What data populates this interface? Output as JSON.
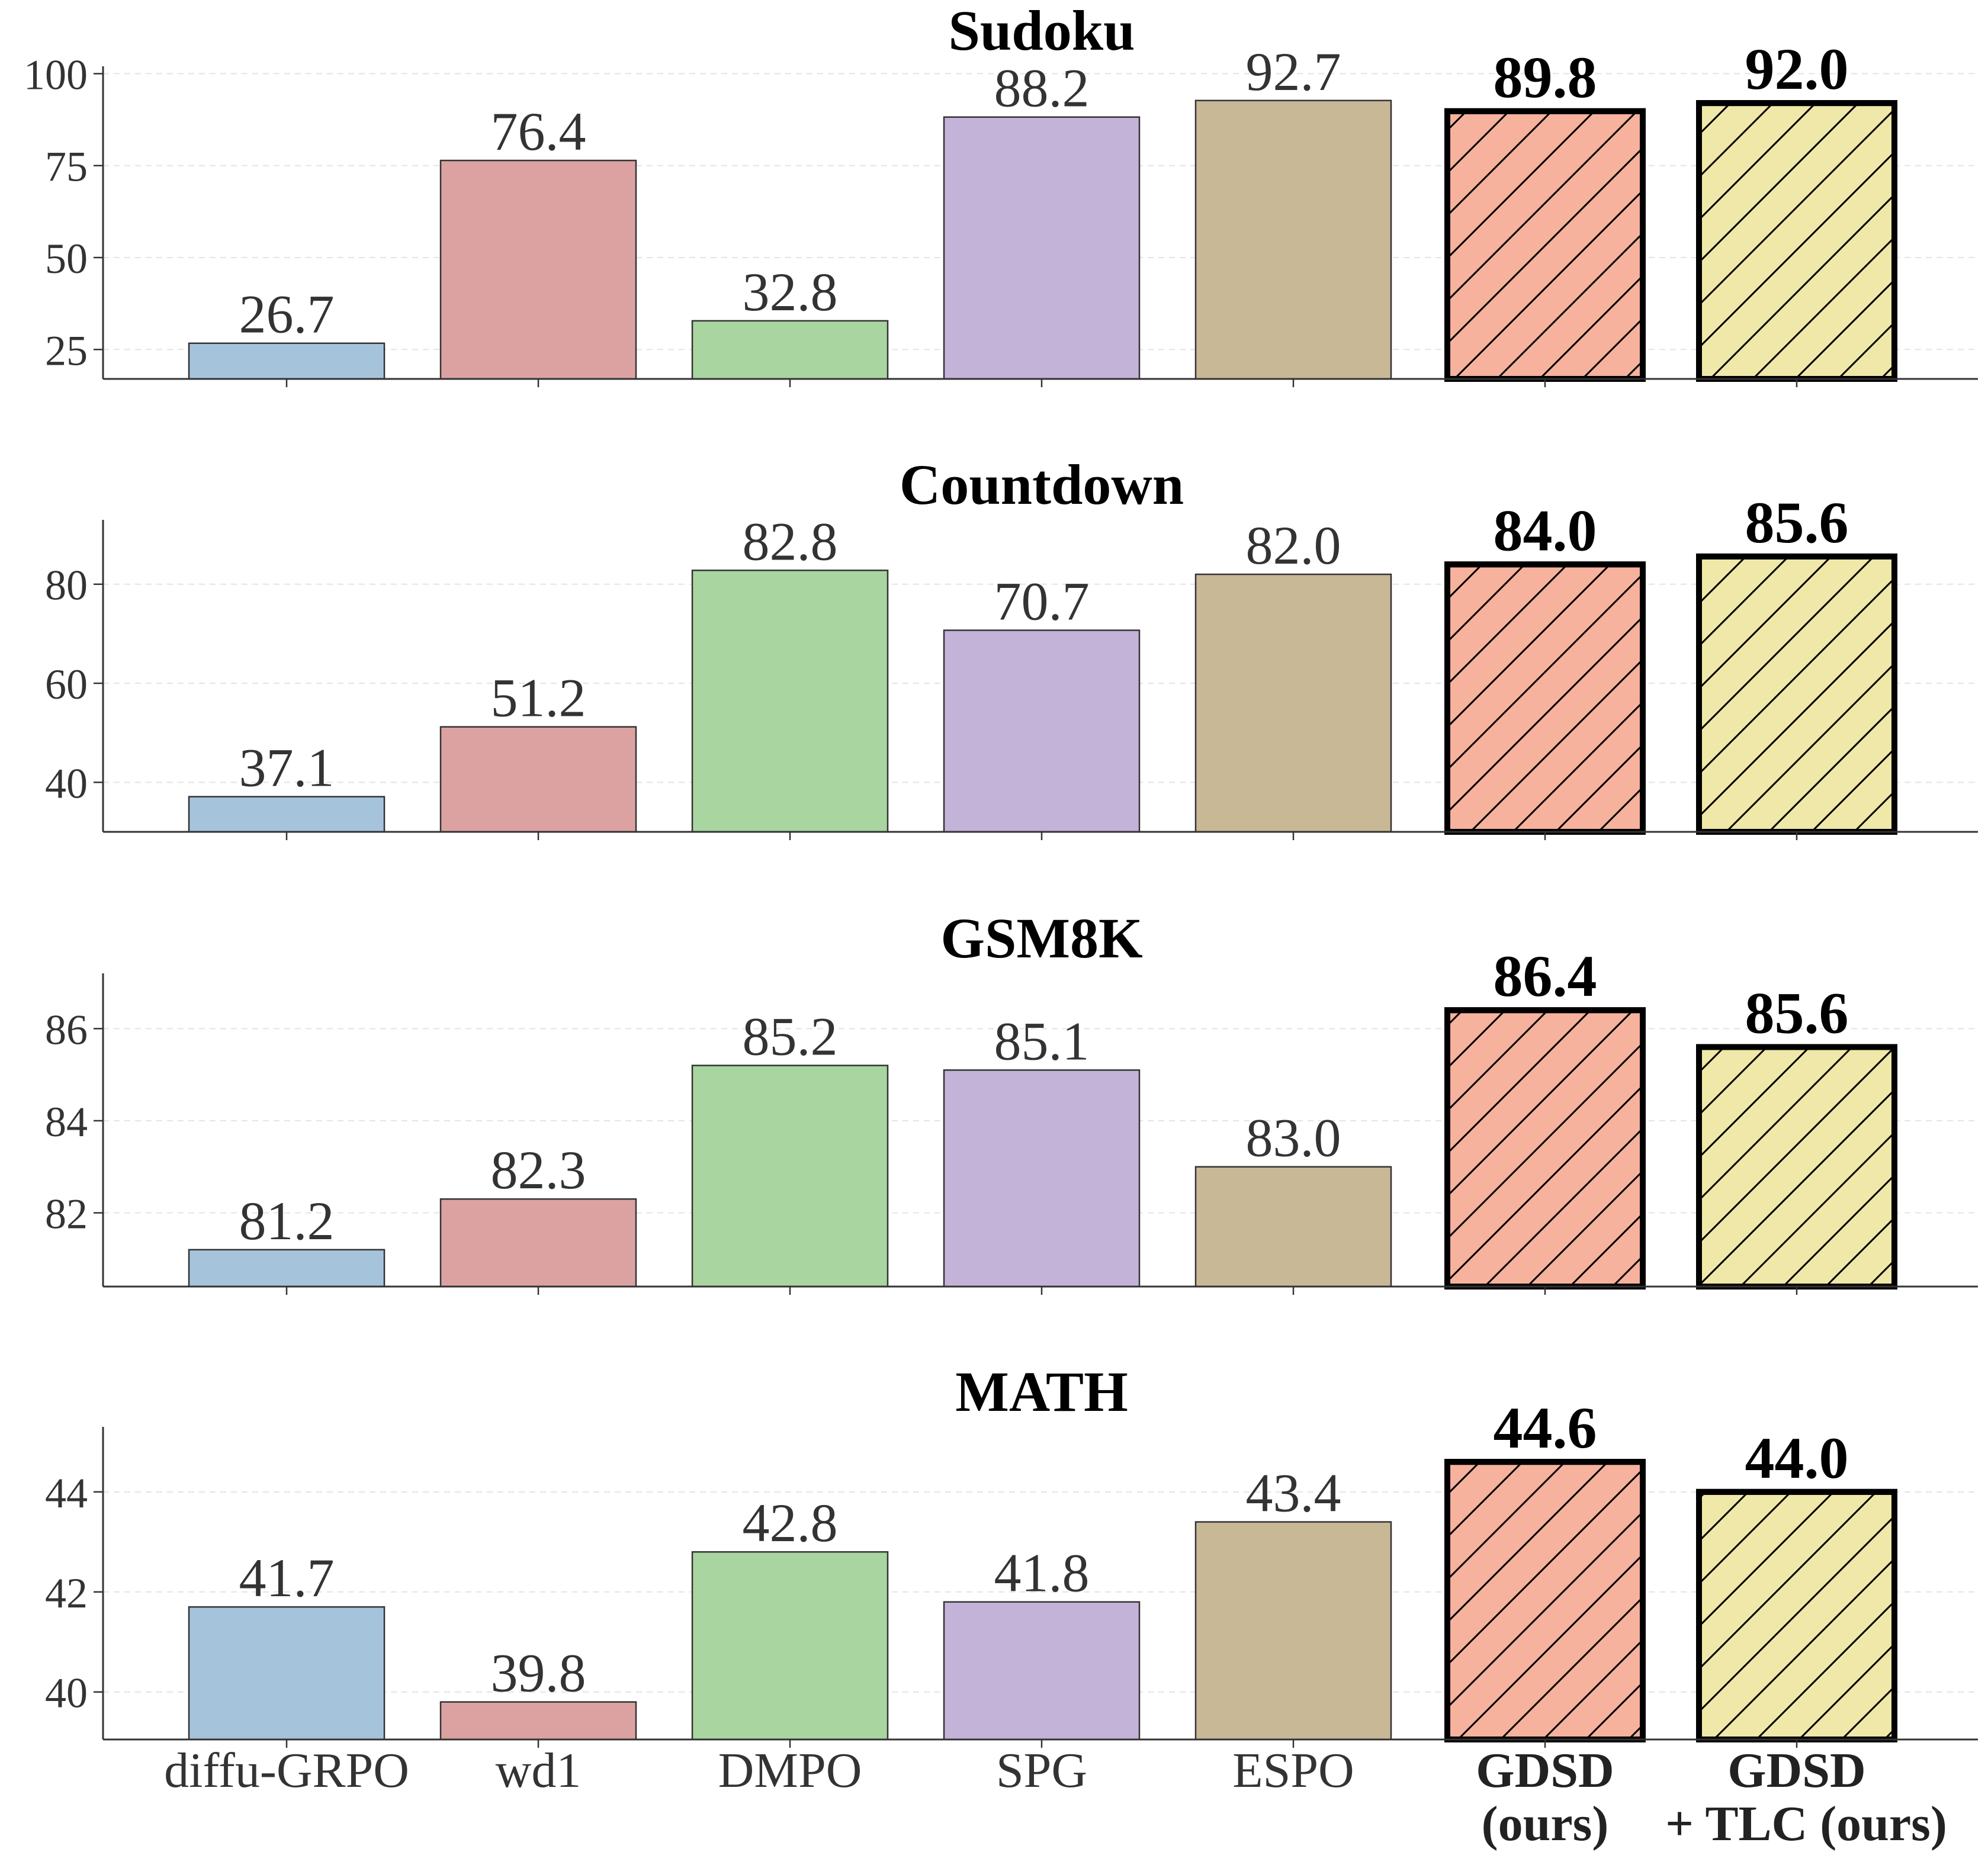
{
  "chart_data": {
    "type": "bar",
    "categories": [
      [
        "diffu-GRPO"
      ],
      [
        "wd1"
      ],
      [
        "DMPO"
      ],
      [
        "SPG"
      ],
      [
        "ESPO"
      ],
      [
        "GDSD",
        "(ours)"
      ],
      [
        "GDSD",
        "+ TLC (ours)"
      ]
    ],
    "highlighted_categories": [
      5,
      6
    ],
    "colors": [
      "#a6c3dc",
      "#dca2a2",
      "#a8d5a0",
      "#c3b3d8",
      "#c8b896",
      "#f6b29d",
      "#efe8a8"
    ],
    "hatched_categories": [
      5,
      6
    ],
    "grid": "horizontal dashed",
    "panels": [
      {
        "title": "Sudoku",
        "values": [
          26.7,
          76.4,
          32.8,
          88.2,
          92.7,
          89.8,
          92.0
        ],
        "value_labels": [
          "26.7",
          "76.4",
          "32.8",
          "88.2",
          "92.7",
          "89.8",
          "92.0"
        ],
        "ylim": [
          17.0,
          102.0
        ],
        "yticks": [
          25,
          50,
          75,
          100
        ]
      },
      {
        "title": "Countdown",
        "values": [
          37.1,
          51.2,
          82.8,
          70.7,
          82.0,
          84.0,
          85.6
        ],
        "value_labels": [
          "37.1",
          "51.2",
          "82.8",
          "70.7",
          "82.0",
          "84.0",
          "85.6"
        ],
        "ylim": [
          30.0,
          93.0
        ],
        "yticks": [
          40,
          60,
          80
        ]
      },
      {
        "title": "GSM8K",
        "values": [
          81.2,
          82.3,
          85.2,
          85.1,
          83.0,
          86.4,
          85.6
        ],
        "value_labels": [
          "81.2",
          "82.3",
          "85.2",
          "85.1",
          "83.0",
          "86.4",
          "85.6"
        ],
        "ylim": [
          80.4,
          87.2
        ],
        "yticks": [
          82,
          84,
          86
        ]
      },
      {
        "title": "MATH",
        "values": [
          41.7,
          39.8,
          42.8,
          41.8,
          43.4,
          44.6,
          44.0
        ],
        "value_labels": [
          "41.7",
          "39.8",
          "42.8",
          "41.8",
          "43.4",
          "44.6",
          "44.0"
        ],
        "ylim": [
          39.05,
          45.3
        ],
        "yticks": [
          40,
          42,
          44
        ]
      }
    ]
  }
}
